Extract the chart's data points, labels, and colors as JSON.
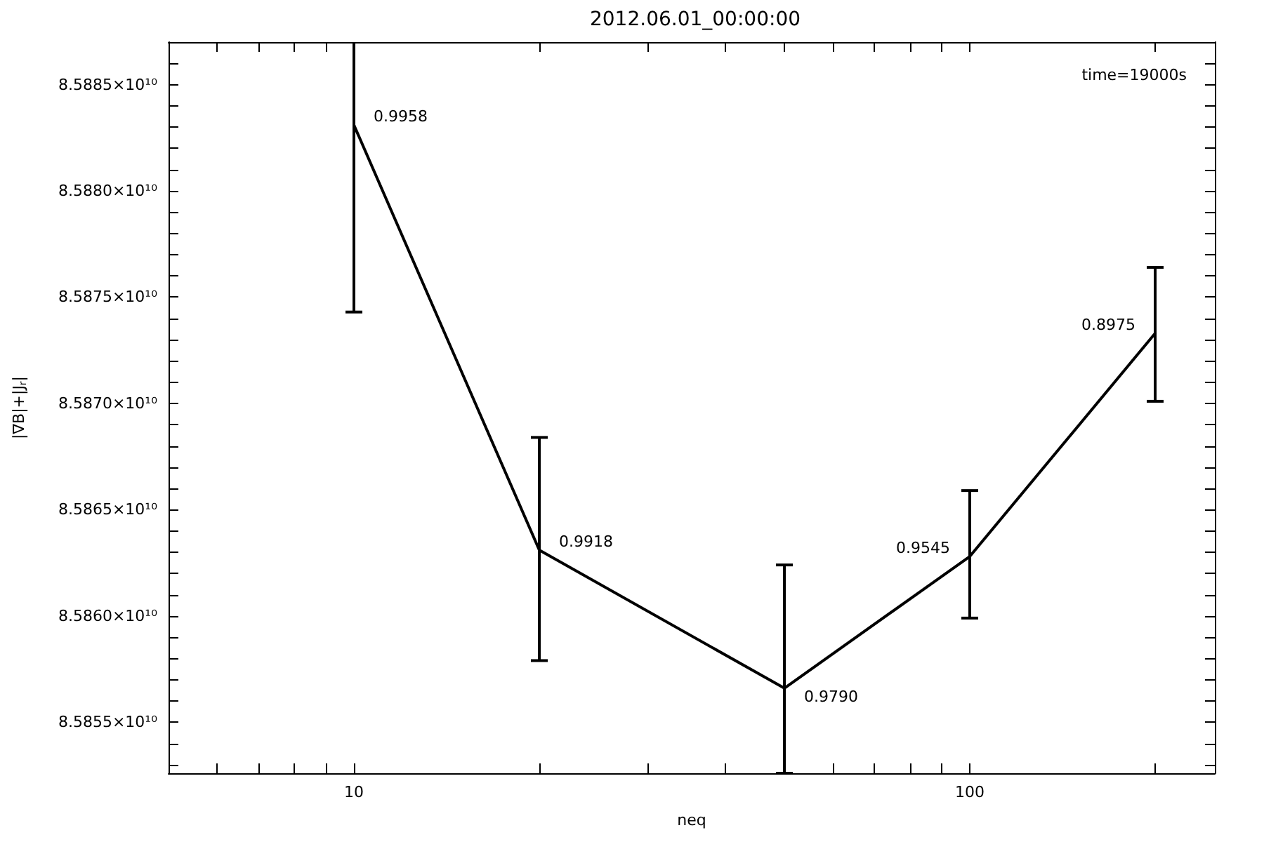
{
  "chart_data": {
    "type": "line",
    "title": "2012.06.01_00:00:00",
    "xlabel": "neq",
    "ylabel": "|∇B|+|J$_{r}$|",
    "x": [
      10,
      20,
      50,
      100,
      200
    ],
    "series": [
      {
        "color": "#000000",
        "values": [
          85883100000,
          85863100000,
          85856600000,
          85862800000,
          85873300000
        ],
        "errors": [
          [
            85874300000,
            85887000000
          ],
          [
            85857900000,
            85868400000
          ],
          [
            85852600000,
            85862400000
          ],
          [
            85859900000,
            85865900000
          ],
          [
            85870100000,
            85876400000
          ]
        ]
      }
    ],
    "log": "x",
    "xlim": [
      5,
      250
    ],
    "xticks": [
      {
        "value": 6,
        "label": null
      },
      {
        "value": 7,
        "label": null
      },
      {
        "value": 8,
        "label": null
      },
      {
        "value": 9,
        "label": null
      },
      10,
      {
        "value": 20,
        "label": null
      },
      {
        "value": 30,
        "label": null
      },
      {
        "value": 40,
        "label": null
      },
      {
        "value": 50,
        "label": null
      },
      {
        "value": 60,
        "label": null
      },
      {
        "value": 70,
        "label": null
      },
      {
        "value": 80,
        "label": null
      },
      {
        "value": 90,
        "label": null
      },
      100,
      {
        "value": 200,
        "label": null
      }
    ],
    "ylim": [
      85852600000,
      85887000000
    ],
    "yticks": [
      {
        "value": 85853000000,
        "label": null
      },
      {
        "value": 85854000000,
        "label": null
      },
      {
        "value": 85855000000,
        "label": "8.5855×10¹⁰"
      },
      {
        "value": 85856000000,
        "label": null
      },
      {
        "value": 85857000000,
        "label": null
      },
      {
        "value": 85858000000,
        "label": null
      },
      {
        "value": 85859000000,
        "label": null
      },
      {
        "value": 85860000000,
        "label": "8.5860×10¹⁰"
      },
      {
        "value": 85861000000,
        "label": null
      },
      {
        "value": 85862000000,
        "label": null
      },
      {
        "value": 85863000000,
        "label": null
      },
      {
        "value": 85864000000,
        "label": null
      },
      {
        "value": 85865000000,
        "label": "8.5865×10¹⁰"
      },
      {
        "value": 85866000000,
        "label": null
      },
      {
        "value": 85867000000,
        "label": null
      },
      {
        "value": 85868000000,
        "label": null
      },
      {
        "value": 85869000000,
        "label": null
      },
      {
        "value": 85870000000,
        "label": "8.5870×10¹⁰"
      },
      {
        "value": 85871000000,
        "label": null
      },
      {
        "value": 85872000000,
        "label": null
      },
      {
        "value": 85873000000,
        "label": null
      },
      {
        "value": 85874000000,
        "label": null
      },
      {
        "value": 85875000000,
        "label": "8.5875×10¹⁰"
      },
      {
        "value": 85876000000,
        "label": null
      },
      {
        "value": 85877000000,
        "label": null
      },
      {
        "value": 85878000000,
        "label": null
      },
      {
        "value": 85879000000,
        "label": null
      },
      {
        "value": 85880000000,
        "label": "8.5880×10¹⁰"
      },
      {
        "value": 85881000000,
        "label": null
      },
      {
        "value": 85882000000,
        "label": null
      },
      {
        "value": 85883000000,
        "label": null
      },
      {
        "value": 85884000000,
        "label": null
      },
      {
        "value": 85885000000,
        "label": "8.5885×10¹⁰"
      },
      {
        "value": 85886000000,
        "label": null
      }
    ],
    "grid": false,
    "marker": "none",
    "line_style": "solid",
    "annotations": [
      {
        "text": "0.9958",
        "x": 10,
        "y": 85883100000
      },
      {
        "text": "0.9918",
        "x": 20,
        "y": 85863100000
      },
      {
        "text": "0.9790",
        "x": 50,
        "y": 85856600000
      },
      {
        "text": "0.9545",
        "x": 100,
        "y": 85862800000
      },
      {
        "text": "0.8975",
        "x": 200,
        "y": 85873300000
      },
      "time=19000s"
    ]
  }
}
